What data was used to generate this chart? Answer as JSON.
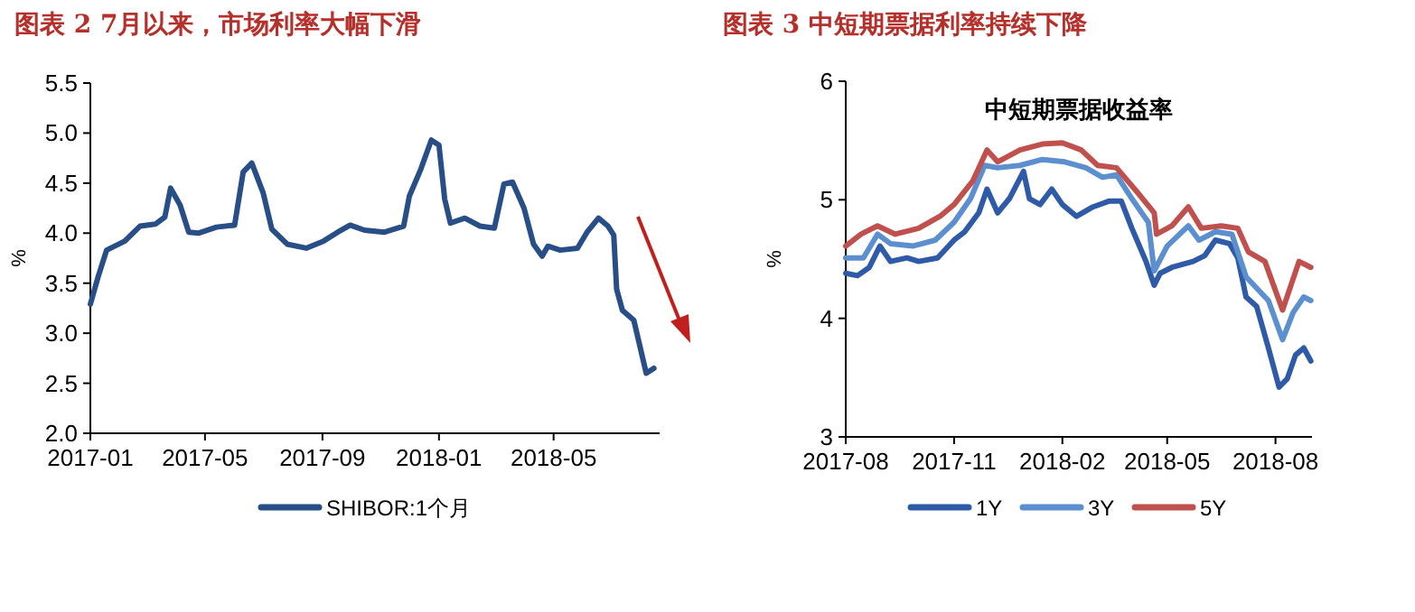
{
  "chart_data": [
    {
      "type": "line",
      "title": "图表 2 7月以来，市场利率大幅下滑",
      "ylabel": "%",
      "xlim": [
        "2017-01-01",
        "2018-08-20"
      ],
      "ylim": [
        2.0,
        5.5
      ],
      "xticks": [
        "2017-01",
        "2017-05",
        "2017-09",
        "2018-01",
        "2018-05"
      ],
      "yticks": [
        {
          "value": 2.0,
          "label": "2.0"
        },
        2.5,
        {
          "value": 3.0,
          "label": "3.0"
        },
        3.5,
        {
          "value": 4.0,
          "label": "4.0"
        },
        4.5,
        {
          "value": 5.0,
          "label": "5.0"
        },
        5.5
      ],
      "legend": "bottom",
      "series": [
        {
          "name": "SHIBOR:1个月",
          "color": "#274e86",
          "x": [
            "2017-01-01",
            "2017-01-09",
            "2017-01-18",
            "2017-02-06",
            "2017-02-22",
            "2017-03-10",
            "2017-03-20",
            "2017-03-26",
            "2017-04-05",
            "2017-04-14",
            "2017-04-24",
            "2017-05-13",
            "2017-06-01",
            "2017-06-10",
            "2017-06-19",
            "2017-07-01",
            "2017-07-10",
            "2017-07-26",
            "2017-08-15",
            "2017-09-02",
            "2017-09-17",
            "2017-09-30",
            "2017-10-15",
            "2017-11-05",
            "2017-11-25",
            "2017-12-01",
            "2017-12-13",
            "2017-12-24",
            "2018-01-01",
            "2018-01-07",
            "2018-01-13",
            "2018-01-28",
            "2018-02-13",
            "2018-02-28",
            "2018-03-10",
            "2018-03-19",
            "2018-03-31",
            "2018-04-10",
            "2018-04-19",
            "2018-04-25",
            "2018-05-08",
            "2018-05-26",
            "2018-06-05",
            "2018-06-17",
            "2018-06-27",
            "2018-07-03",
            "2018-07-06",
            "2018-07-12",
            "2018-07-24",
            "2018-08-06",
            "2018-08-14"
          ],
          "values": [
            3.29,
            3.56,
            3.83,
            3.92,
            4.07,
            4.09,
            4.16,
            4.45,
            4.28,
            4.01,
            4.0,
            4.06,
            4.08,
            4.61,
            4.7,
            4.4,
            4.04,
            3.89,
            3.85,
            3.92,
            4.01,
            4.08,
            4.03,
            4.01,
            4.07,
            4.37,
            4.64,
            4.93,
            4.88,
            4.34,
            4.1,
            4.15,
            4.07,
            4.05,
            4.49,
            4.51,
            4.25,
            3.89,
            3.77,
            3.87,
            3.83,
            3.85,
            4.01,
            4.15,
            4.07,
            3.98,
            3.44,
            3.23,
            3.13,
            2.6,
            2.65
          ]
        }
      ]
    },
    {
      "type": "line",
      "title": "图表 3 中短期票据利率持续下降",
      "subtitle": "中短期票据收益率",
      "ylabel": "%",
      "xlim": [
        "2017-08-01",
        "2018-09-01"
      ],
      "ylim": [
        3,
        6
      ],
      "xticks": [
        "2017-08",
        "2017-11",
        "2018-02",
        "2018-05",
        "2018-08"
      ],
      "yticks": [
        3,
        4,
        5,
        6
      ],
      "legend": "bottom",
      "series": [
        {
          "name": "1Y",
          "color": "#2e5aa8",
          "x": [
            "2017-08-01",
            "2017-08-11",
            "2017-08-21",
            "2017-08-30",
            "2017-09-08",
            "2017-09-22",
            "2017-10-02",
            "2017-10-18",
            "2017-11-01",
            "2017-11-10",
            "2017-11-22",
            "2017-11-29",
            "2017-12-08",
            "2017-12-18",
            "2017-12-30",
            "2018-01-04",
            "2018-01-13",
            "2018-01-23",
            "2018-02-01",
            "2018-02-13",
            "2018-02-27",
            "2018-03-13",
            "2018-03-23",
            "2018-04-01",
            "2018-04-13",
            "2018-04-20",
            "2018-04-25",
            "2018-05-05",
            "2018-05-23",
            "2018-06-02",
            "2018-06-11",
            "2018-06-23",
            "2018-06-30",
            "2018-07-07",
            "2018-07-16",
            "2018-07-26",
            "2018-08-04",
            "2018-08-11",
            "2018-08-18",
            "2018-08-25",
            "2018-08-31"
          ],
          "values": [
            4.38,
            4.36,
            4.43,
            4.61,
            4.48,
            4.51,
            4.48,
            4.51,
            4.66,
            4.73,
            4.89,
            5.09,
            4.89,
            5.01,
            5.24,
            5.01,
            4.96,
            5.09,
            4.96,
            4.86,
            4.94,
            4.99,
            4.99,
            4.76,
            4.48,
            4.28,
            4.38,
            4.43,
            4.48,
            4.53,
            4.66,
            4.63,
            4.51,
            4.18,
            4.1,
            3.75,
            3.42,
            3.49,
            3.69,
            3.75,
            3.64
          ]
        },
        {
          "name": "3Y",
          "color": "#5b8fd0",
          "x": [
            "2017-08-01",
            "2017-08-16",
            "2017-08-28",
            "2017-09-08",
            "2017-09-27",
            "2017-10-16",
            "2017-11-01",
            "2017-11-15",
            "2017-11-27",
            "2017-12-08",
            "2017-12-27",
            "2018-01-15",
            "2018-02-03",
            "2018-02-21",
            "2018-03-07",
            "2018-03-19",
            "2018-04-01",
            "2018-04-15",
            "2018-04-20",
            "2018-05-01",
            "2018-05-19",
            "2018-05-28",
            "2018-06-11",
            "2018-06-25",
            "2018-07-07",
            "2018-07-26",
            "2018-08-07",
            "2018-08-16",
            "2018-08-25",
            "2018-08-31"
          ],
          "values": [
            4.51,
            4.51,
            4.71,
            4.63,
            4.61,
            4.66,
            4.81,
            5.01,
            5.29,
            5.27,
            5.29,
            5.34,
            5.32,
            5.27,
            5.19,
            5.21,
            5.01,
            4.81,
            4.4,
            4.61,
            4.78,
            4.66,
            4.73,
            4.71,
            4.35,
            4.15,
            3.82,
            4.05,
            4.18,
            4.15
          ]
        },
        {
          "name": "5Y",
          "color": "#c0504d",
          "x": [
            "2017-08-01",
            "2017-08-14",
            "2017-08-28",
            "2017-09-12",
            "2017-10-02",
            "2017-10-20",
            "2017-11-01",
            "2017-11-17",
            "2017-11-29",
            "2017-12-08",
            "2017-12-27",
            "2018-01-15",
            "2018-02-01",
            "2018-02-17",
            "2018-03-03",
            "2018-03-19",
            "2018-04-06",
            "2018-04-20",
            "2018-04-22",
            "2018-05-05",
            "2018-05-19",
            "2018-05-30",
            "2018-06-16",
            "2018-06-30",
            "2018-07-09",
            "2018-07-23",
            "2018-08-07",
            "2018-08-21",
            "2018-08-31"
          ],
          "values": [
            4.61,
            4.71,
            4.78,
            4.71,
            4.76,
            4.86,
            4.96,
            5.16,
            5.42,
            5.32,
            5.42,
            5.47,
            5.48,
            5.42,
            5.29,
            5.27,
            5.06,
            4.89,
            4.71,
            4.78,
            4.94,
            4.76,
            4.78,
            4.76,
            4.56,
            4.48,
            4.07,
            4.48,
            4.43
          ]
        }
      ]
    }
  ]
}
